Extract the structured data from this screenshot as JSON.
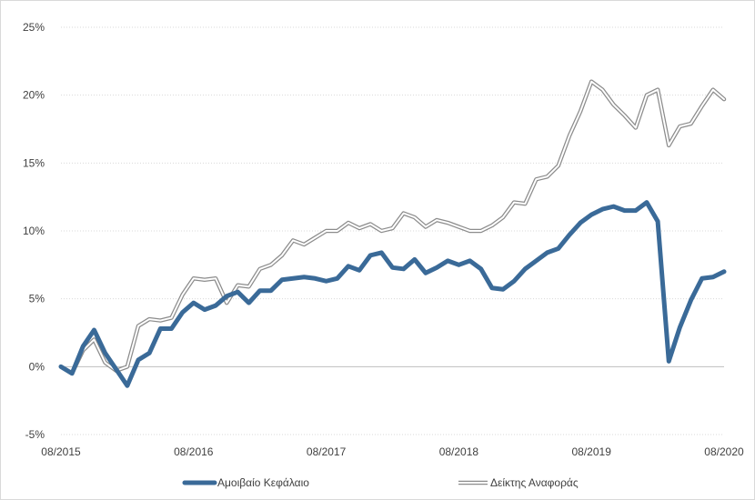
{
  "chart_data": {
    "type": "line",
    "title": "",
    "xlabel": "",
    "ylabel": "",
    "ylim": [
      -5,
      25
    ],
    "y_ticks": [
      -5,
      0,
      5,
      10,
      15,
      20,
      25
    ],
    "y_tick_labels": [
      "-5%",
      "0%",
      "5%",
      "10%",
      "15%",
      "20%",
      "25%"
    ],
    "x_tick_labels": [
      "08/2015",
      "08/2016",
      "08/2017",
      "08/2018",
      "08/2019",
      "08/2020"
    ],
    "x_tick_positions": [
      0,
      12,
      24,
      36,
      48,
      60
    ],
    "grid": true,
    "legend_position": "bottom",
    "series": [
      {
        "name": "Αμοιβαίο Κεφάλαιο",
        "color": "#3a6a98",
        "style": "thick-solid",
        "values": [
          0.0,
          -0.5,
          1.5,
          2.7,
          1.0,
          -0.2,
          -1.4,
          0.5,
          1.0,
          2.8,
          2.8,
          4.0,
          4.7,
          4.2,
          4.5,
          5.2,
          5.5,
          4.7,
          5.6,
          5.6,
          6.4,
          6.5,
          6.6,
          6.5,
          6.3,
          6.5,
          7.4,
          7.1,
          8.2,
          8.4,
          7.3,
          7.2,
          7.9,
          6.9,
          7.3,
          7.8,
          7.5,
          7.8,
          7.2,
          5.8,
          5.7,
          6.3,
          7.2,
          7.8,
          8.4,
          8.7,
          9.7,
          10.6,
          11.2,
          11.6,
          11.8,
          11.5,
          11.5,
          12.1,
          10.7,
          0.4,
          2.9,
          4.9,
          6.5,
          6.6,
          7.0
        ]
      },
      {
        "name": "Δείκτης Αναφοράς",
        "color": "#8c8c8c",
        "style": "double-line",
        "values": [
          0.0,
          -0.5,
          1.2,
          2.0,
          0.3,
          -0.3,
          0.0,
          3.0,
          3.5,
          3.4,
          3.6,
          5.3,
          6.5,
          6.4,
          6.5,
          4.7,
          6.0,
          5.9,
          7.2,
          7.5,
          8.2,
          9.3,
          9.0,
          9.5,
          10.0,
          10.0,
          10.6,
          10.2,
          10.5,
          10.0,
          10.2,
          11.3,
          11.0,
          10.3,
          10.8,
          10.6,
          10.3,
          10.0,
          10.0,
          10.4,
          11.0,
          12.1,
          12.0,
          13.8,
          14.0,
          14.8,
          17.0,
          18.8,
          21.0,
          20.4,
          19.3,
          18.5,
          17.6,
          20.0,
          20.4,
          16.3,
          17.7,
          17.9,
          19.2,
          20.4,
          19.7
        ]
      }
    ]
  }
}
